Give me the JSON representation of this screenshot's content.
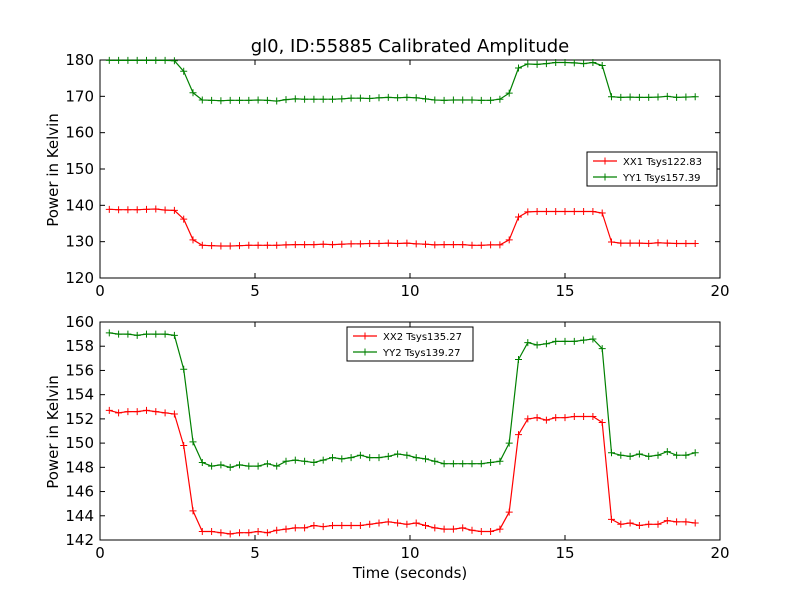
{
  "chart_data": [
    {
      "type": "line",
      "title": "gl0, ID:55885 Calibrated Amplitude",
      "xlabel": "",
      "ylabel": "Power in Kelvin",
      "xlim": [
        0,
        20
      ],
      "ylim": [
        120,
        180
      ],
      "xticks": [
        0,
        5,
        10,
        15,
        20
      ],
      "yticks": [
        120,
        130,
        140,
        150,
        160,
        170,
        180
      ],
      "legend_position": "center-right",
      "x": [
        0.3,
        0.6,
        0.9,
        1.2,
        1.5,
        1.8,
        2.1,
        2.4,
        2.7,
        3.0,
        3.3,
        3.6,
        3.9,
        4.2,
        4.5,
        4.8,
        5.1,
        5.4,
        5.7,
        6.0,
        6.3,
        6.6,
        6.9,
        7.2,
        7.5,
        7.8,
        8.1,
        8.4,
        8.7,
        9.0,
        9.3,
        9.6,
        9.9,
        10.2,
        10.5,
        10.8,
        11.1,
        11.4,
        11.7,
        12.0,
        12.3,
        12.6,
        12.9,
        13.2,
        13.5,
        13.8,
        14.1,
        14.4,
        14.7,
        15.0,
        15.3,
        15.6,
        15.9,
        16.2,
        16.5,
        16.8,
        17.1,
        17.4,
        17.7,
        18.0,
        18.3,
        18.6,
        18.9,
        19.2
      ],
      "series": [
        {
          "name": "XX1 Tsys122.83",
          "color": "#ff0000",
          "values": [
            138.9,
            138.8,
            138.8,
            138.8,
            138.9,
            139.0,
            138.7,
            138.6,
            136.2,
            130.5,
            129.0,
            128.9,
            128.8,
            128.8,
            128.9,
            129.0,
            129.0,
            129.0,
            129.0,
            129.1,
            129.2,
            129.2,
            129.2,
            129.3,
            129.2,
            129.3,
            129.4,
            129.4,
            129.5,
            129.5,
            129.6,
            129.5,
            129.6,
            129.4,
            129.3,
            129.1,
            129.2,
            129.2,
            129.2,
            129.0,
            129.0,
            129.1,
            129.1,
            130.5,
            136.8,
            138.2,
            138.3,
            138.3,
            138.3,
            138.3,
            138.3,
            138.3,
            138.3,
            137.9,
            129.9,
            129.6,
            129.6,
            129.6,
            129.5,
            129.7,
            129.6,
            129.5,
            129.5,
            129.5
          ]
        },
        {
          "name": "YY1 Tsys157.39",
          "color": "#008000",
          "values": [
            179.9,
            179.9,
            179.9,
            179.9,
            179.9,
            179.9,
            179.9,
            179.8,
            176.9,
            171.0,
            169.0,
            168.9,
            168.8,
            168.9,
            168.9,
            168.9,
            169.0,
            168.9,
            168.7,
            169.1,
            169.3,
            169.2,
            169.2,
            169.2,
            169.2,
            169.3,
            169.5,
            169.5,
            169.4,
            169.6,
            169.7,
            169.6,
            169.7,
            169.6,
            169.3,
            169.0,
            168.9,
            169.0,
            169.0,
            169.0,
            168.9,
            168.9,
            169.2,
            170.9,
            177.8,
            178.9,
            178.8,
            179.0,
            179.3,
            179.3,
            179.2,
            179.0,
            179.3,
            178.5,
            169.9,
            169.7,
            169.8,
            169.7,
            169.7,
            169.8,
            170.0,
            169.7,
            169.8,
            169.9
          ]
        }
      ]
    },
    {
      "type": "line",
      "title": "",
      "xlabel": "Time (seconds)",
      "ylabel": "Power in Kelvin",
      "xlim": [
        0,
        20
      ],
      "ylim": [
        142,
        160
      ],
      "xticks": [
        0,
        5,
        10,
        15,
        20
      ],
      "yticks": [
        142,
        144,
        146,
        148,
        150,
        152,
        154,
        156,
        158,
        160
      ],
      "legend_position": "upper-center",
      "x": [
        0.3,
        0.6,
        0.9,
        1.2,
        1.5,
        1.8,
        2.1,
        2.4,
        2.7,
        3.0,
        3.3,
        3.6,
        3.9,
        4.2,
        4.5,
        4.8,
        5.1,
        5.4,
        5.7,
        6.0,
        6.3,
        6.6,
        6.9,
        7.2,
        7.5,
        7.8,
        8.1,
        8.4,
        8.7,
        9.0,
        9.3,
        9.6,
        9.9,
        10.2,
        10.5,
        10.8,
        11.1,
        11.4,
        11.7,
        12.0,
        12.3,
        12.6,
        12.9,
        13.2,
        13.5,
        13.8,
        14.1,
        14.4,
        14.7,
        15.0,
        15.3,
        15.6,
        15.9,
        16.2,
        16.5,
        16.8,
        17.1,
        17.4,
        17.7,
        18.0,
        18.3,
        18.6,
        18.9,
        19.2
      ],
      "series": [
        {
          "name": "XX2 Tsys135.27",
          "color": "#ff0000",
          "values": [
            152.7,
            152.5,
            152.6,
            152.6,
            152.7,
            152.6,
            152.5,
            152.4,
            149.8,
            144.4,
            142.7,
            142.7,
            142.6,
            142.5,
            142.6,
            142.6,
            142.7,
            142.6,
            142.8,
            142.9,
            143.0,
            143.0,
            143.2,
            143.1,
            143.2,
            143.2,
            143.2,
            143.2,
            143.3,
            143.4,
            143.5,
            143.4,
            143.3,
            143.4,
            143.2,
            143.0,
            142.9,
            142.9,
            143.0,
            142.8,
            142.7,
            142.7,
            142.9,
            144.3,
            150.7,
            152.0,
            152.1,
            151.9,
            152.1,
            152.1,
            152.2,
            152.2,
            152.2,
            151.7,
            143.7,
            143.3,
            143.4,
            143.2,
            143.3,
            143.3,
            143.6,
            143.5,
            143.5,
            143.4
          ]
        },
        {
          "name": "YY2 Tsys139.27",
          "color": "#008000",
          "values": [
            159.1,
            159.0,
            159.0,
            158.9,
            159.0,
            159.0,
            159.0,
            158.9,
            156.1,
            150.1,
            148.4,
            148.1,
            148.2,
            148.0,
            148.2,
            148.1,
            148.1,
            148.3,
            148.1,
            148.5,
            148.6,
            148.5,
            148.4,
            148.6,
            148.8,
            148.7,
            148.8,
            149.0,
            148.8,
            148.8,
            148.9,
            149.1,
            149.0,
            148.8,
            148.7,
            148.5,
            148.3,
            148.3,
            148.3,
            148.3,
            148.3,
            148.4,
            148.5,
            150.0,
            156.9,
            158.3,
            158.1,
            158.2,
            158.4,
            158.4,
            158.4,
            158.5,
            158.6,
            157.8,
            149.2,
            149.0,
            148.9,
            149.1,
            148.9,
            149.0,
            149.3,
            149.0,
            149.0,
            149.2
          ]
        }
      ]
    }
  ]
}
